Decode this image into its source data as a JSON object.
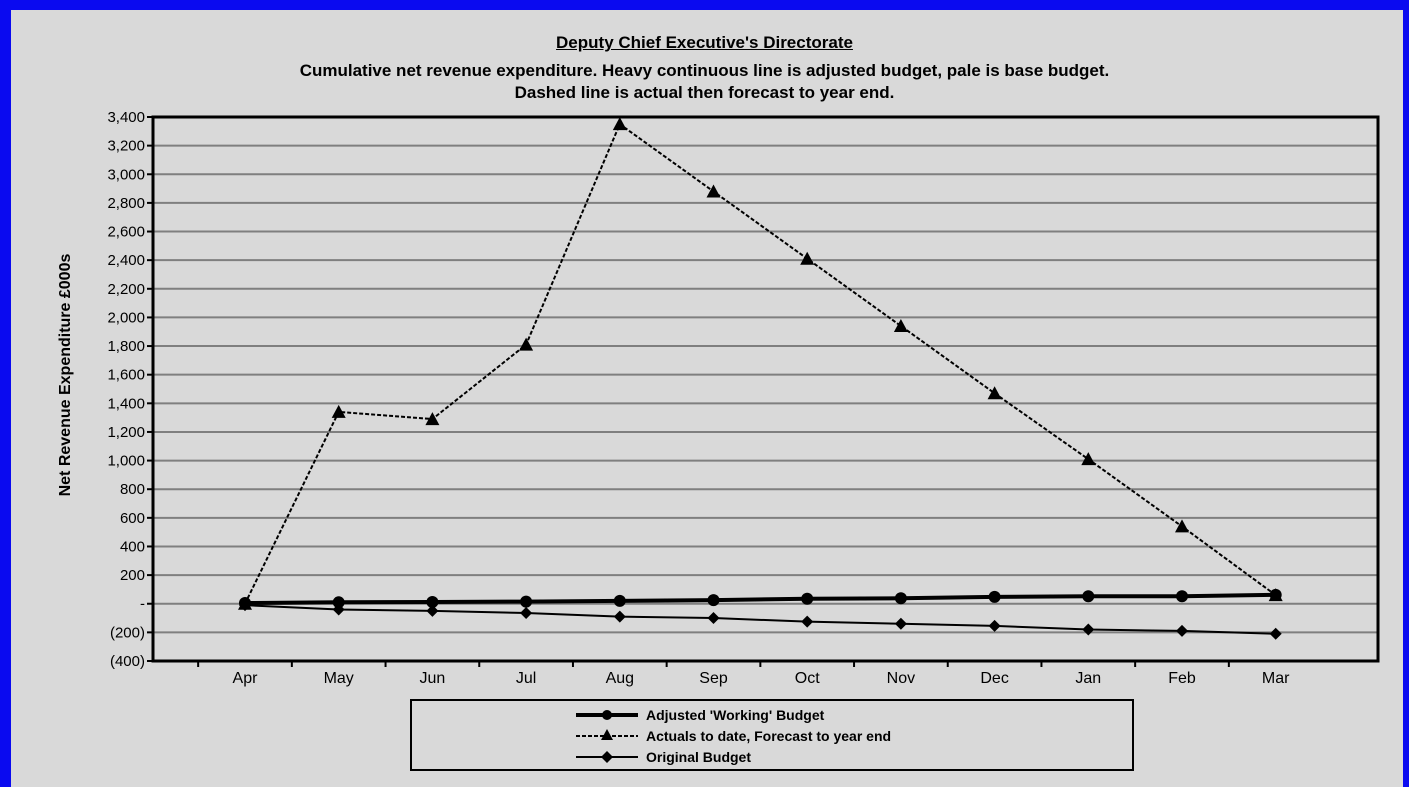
{
  "chart_data": {
    "type": "line",
    "title": "Deputy Chief Executive's Directorate",
    "subtitle_line1": "Cumulative net revenue expenditure. Heavy continuous line is adjusted budget, pale is base budget.",
    "subtitle_line2": "Dashed line is actual then forecast to year end.",
    "xlabel": "",
    "ylabel": "Net Revenue Expenditure £000s",
    "categories": [
      "Apr",
      "May",
      "Jun",
      "Jul",
      "Aug",
      "Sep",
      "Oct",
      "Nov",
      "Dec",
      "Jan",
      "Feb",
      "Mar"
    ],
    "ylim": [
      -400,
      3400
    ],
    "yticks": [
      -400,
      -200,
      0,
      200,
      400,
      600,
      800,
      1000,
      1200,
      1400,
      1600,
      1800,
      2000,
      2200,
      2400,
      2600,
      2800,
      3000,
      3200,
      3400
    ],
    "ytick_labels": [
      "(400)",
      "(200)",
      "-",
      "200",
      "400",
      "600",
      "800",
      "1,000",
      "1,200",
      "1,400",
      "1,600",
      "1,800",
      "2,000",
      "2,200",
      "2,400",
      "2,600",
      "2,800",
      "3,000",
      "3,200",
      "3,400"
    ],
    "grid": true,
    "legend_position": "bottom",
    "series": [
      {
        "name": "Adjusted 'Working' Budget",
        "style": "heavy-solid",
        "marker": "circle",
        "values": [
          5,
          10,
          12,
          15,
          20,
          25,
          35,
          38,
          48,
          52,
          52,
          62
        ]
      },
      {
        "name": "Actuals to date, Forecast to year end",
        "style": "dashed",
        "marker": "triangle",
        "values": [
          0,
          1340,
          1290,
          1810,
          3350,
          2880,
          2410,
          1940,
          1470,
          1010,
          540,
          60
        ]
      },
      {
        "name": "Original Budget",
        "style": "thin-solid",
        "marker": "diamond",
        "values": [
          -10,
          -40,
          -50,
          -65,
          -90,
          -100,
          -125,
          -140,
          -155,
          -180,
          -190,
          -210
        ]
      }
    ]
  },
  "colors": {
    "frame_border": "#0a0af0",
    "background": "#d9d9d9",
    "line": "#000000",
    "gridline": "#7f7f7f"
  }
}
